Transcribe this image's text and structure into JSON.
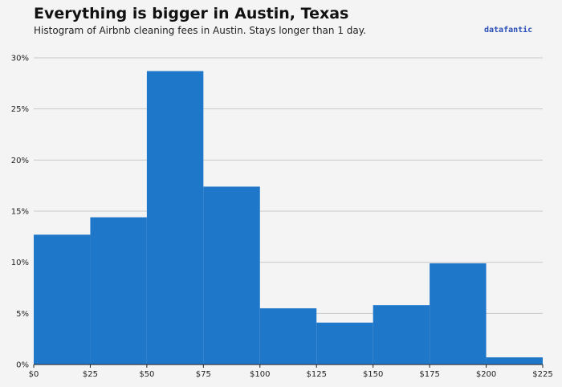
{
  "header": {
    "title": "Everything is bigger in Austin, Texas",
    "subtitle": "Histogram of Airbnb cleaning fees in Austin. Stays longer than 1 day.",
    "brand": "datafantic"
  },
  "chart_data": {
    "type": "bar",
    "title": "Everything is bigger in Austin, Texas",
    "subtitle": "Histogram of Airbnb cleaning fees in Austin. Stays longer than 1 day.",
    "xlabel": "",
    "ylabel": "",
    "bins": [
      {
        "start": 0,
        "end": 25,
        "value": 12.7
      },
      {
        "start": 25,
        "end": 50,
        "value": 14.4
      },
      {
        "start": 50,
        "end": 75,
        "value": 28.7
      },
      {
        "start": 75,
        "end": 100,
        "value": 17.4
      },
      {
        "start": 100,
        "end": 125,
        "value": 5.5
      },
      {
        "start": 125,
        "end": 150,
        "value": 4.1
      },
      {
        "start": 150,
        "end": 175,
        "value": 5.8
      },
      {
        "start": 175,
        "end": 200,
        "value": 9.9
      },
      {
        "start": 200,
        "end": 225,
        "value": 0.7
      }
    ],
    "xlim": [
      0,
      225
    ],
    "ylim": [
      0,
      30
    ],
    "x_ticks": [
      0,
      25,
      50,
      75,
      100,
      125,
      150,
      175,
      200,
      225
    ],
    "x_tick_labels": [
      "$0",
      "$25",
      "$50",
      "$75",
      "$100",
      "$125",
      "$150",
      "$175",
      "$200",
      "$225"
    ],
    "y_ticks": [
      0,
      5,
      10,
      15,
      20,
      25,
      30
    ],
    "y_tick_labels": [
      "0%",
      "5%",
      "10%",
      "15%",
      "20%",
      "25%",
      "30%"
    ],
    "grid": "horizontal",
    "colors": {
      "bar": "#1f77c9",
      "grid": "#c8c8c8",
      "axis": "#222222"
    }
  }
}
